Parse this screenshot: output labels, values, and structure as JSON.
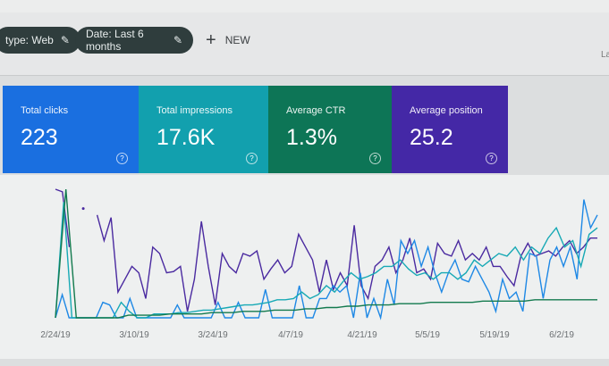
{
  "filters": {
    "chips": [
      {
        "label": "type: Web",
        "icon": "pencil-icon"
      },
      {
        "label": "Date: Last 6 months",
        "icon": "pencil-icon"
      }
    ],
    "new_button": {
      "icon": "plus-icon",
      "label": "NEW"
    },
    "right_label": "La"
  },
  "metrics": [
    {
      "label": "Total clicks",
      "value": "223",
      "color": "#1a6fe0",
      "icon": "help-icon"
    },
    {
      "label": "Total impressions",
      "value": "17.6K",
      "color": "#12a0ae",
      "icon": "help-icon"
    },
    {
      "label": "Average CTR",
      "value": "1.3%",
      "color": "#0d7556",
      "icon": "help-icon"
    },
    {
      "label": "Average position",
      "value": "25.2",
      "color": "#4428a6",
      "icon": "help-icon"
    }
  ],
  "chart_data": {
    "type": "line",
    "x_tick_labels": [
      "2/24/19",
      "3/10/19",
      "3/24/19",
      "4/7/19",
      "4/21/19",
      "5/5/19",
      "5/19/19",
      "6/2/19"
    ],
    "grid": false,
    "series": [
      {
        "color": "#4a2aa0",
        "values": [
          100,
          98,
          55,
          null,
          85,
          null,
          80,
          60,
          78,
          20,
          30,
          40,
          35,
          15,
          55,
          50,
          35,
          36,
          40,
          5,
          30,
          75,
          40,
          10,
          50,
          40,
          35,
          50,
          48,
          52,
          30,
          38,
          45,
          35,
          40,
          65,
          55,
          45,
          20,
          45,
          22,
          35,
          25,
          72,
          25,
          15,
          40,
          45,
          55,
          35,
          45,
          62,
          35,
          38,
          30,
          58,
          50,
          48,
          60,
          45,
          50,
          45,
          55,
          40,
          40,
          32,
          25,
          48,
          58,
          48,
          50,
          52,
          48,
          55,
          60,
          50,
          55,
          62,
          62
        ]
      },
      {
        "color": "#1e88e5",
        "values": [
          0,
          18,
          0,
          0,
          0,
          0,
          0,
          12,
          10,
          0,
          0,
          15,
          0,
          0,
          0,
          0,
          0,
          0,
          10,
          0,
          0,
          0,
          0,
          0,
          12,
          0,
          0,
          12,
          0,
          0,
          0,
          22,
          0,
          0,
          0,
          0,
          25,
          0,
          0,
          15,
          15,
          25,
          20,
          25,
          0,
          35,
          0,
          15,
          0,
          30,
          10,
          60,
          50,
          60,
          40,
          55,
          35,
          20,
          35,
          45,
          30,
          28,
          40,
          30,
          20,
          5,
          30,
          15,
          20,
          5,
          50,
          48,
          15,
          45,
          55,
          40,
          55,
          30,
          92,
          70,
          80
        ]
      },
      {
        "color": "#17a9b5",
        "values": [
          0,
          90,
          0,
          0,
          0,
          0,
          0,
          0,
          12,
          5,
          0,
          0,
          3,
          3,
          3,
          4,
          4,
          5,
          6,
          6,
          7,
          8,
          9,
          10,
          10,
          11,
          12,
          14,
          14,
          15,
          20,
          15,
          18,
          25,
          20,
          28,
          35,
          30,
          32,
          35,
          40,
          40,
          45,
          38,
          33,
          35,
          30,
          35,
          35,
          30,
          35,
          45,
          40,
          45,
          50,
          48,
          55,
          45,
          55,
          50,
          62,
          70,
          55,
          60,
          40,
          65,
          70
        ]
      },
      {
        "color": "#137a4e",
        "values": [
          0,
          100,
          0,
          0,
          0,
          0,
          0,
          2,
          2,
          2,
          2,
          3,
          3,
          3,
          3,
          4,
          4,
          4,
          5,
          5,
          5,
          6,
          6,
          6,
          7,
          7,
          8,
          8,
          9,
          9,
          10,
          10,
          10,
          11,
          11,
          11,
          12,
          12,
          12,
          12,
          12,
          13,
          13,
          13,
          13,
          13,
          14,
          14,
          14,
          14,
          14,
          14,
          14
        ]
      }
    ]
  }
}
